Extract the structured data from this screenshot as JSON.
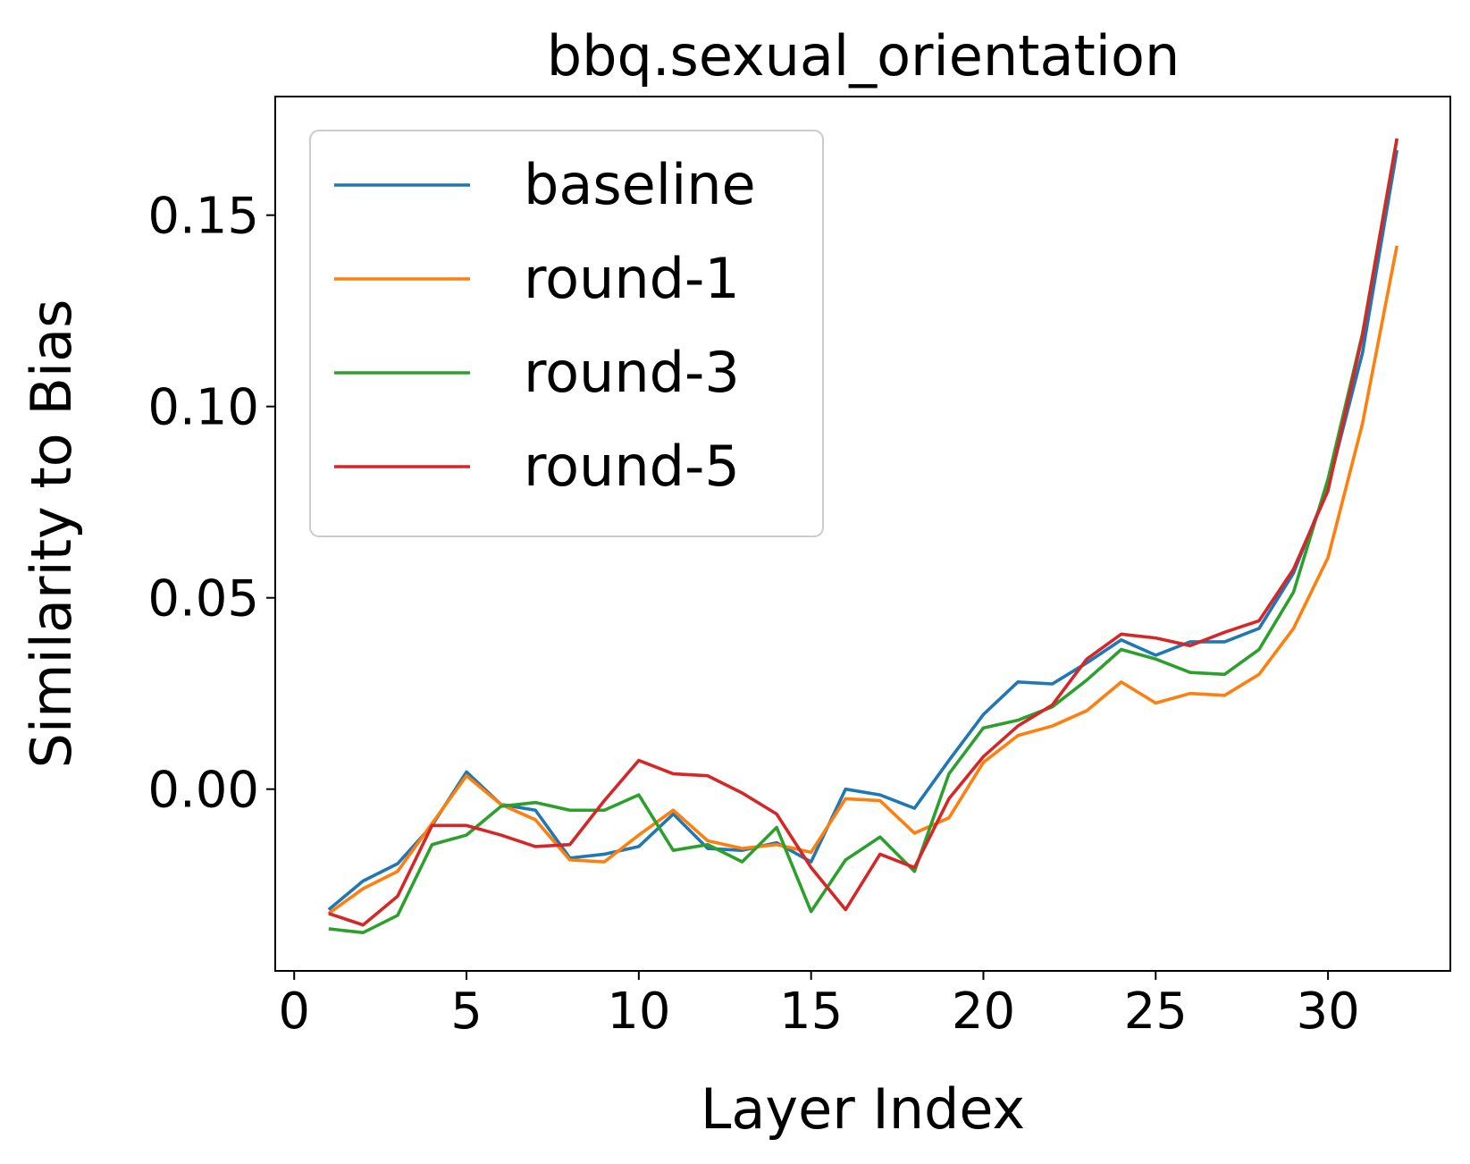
{
  "chart_data": {
    "type": "line",
    "title": "bbq.sexual_orientation",
    "xlabel": "Layer Index",
    "ylabel": "Similarity to Bias",
    "xlim": [
      -0.55,
      33.55
    ],
    "ylim": [
      -0.0475,
      0.181
    ],
    "xticks": [
      0,
      5,
      10,
      15,
      20,
      25,
      30
    ],
    "xtick_labels": [
      "0",
      "5",
      "10",
      "15",
      "20",
      "25",
      "30"
    ],
    "yticks": [
      0.0,
      0.05,
      0.1,
      0.15
    ],
    "ytick_labels": [
      "0.00",
      "0.05",
      "0.10",
      "0.15"
    ],
    "grid": false,
    "legend_position": "upper-left",
    "x": [
      1,
      2,
      3,
      4,
      5,
      6,
      7,
      8,
      9,
      10,
      11,
      12,
      13,
      14,
      15,
      16,
      17,
      18,
      19,
      20,
      21,
      22,
      23,
      24,
      25,
      26,
      27,
      28,
      29,
      30,
      31,
      32
    ],
    "series": [
      {
        "name": "baseline",
        "color": "#1f77b4",
        "values": [
          -0.0315,
          -0.024,
          -0.0195,
          -0.0095,
          0.0045,
          -0.004,
          -0.0055,
          -0.018,
          -0.017,
          -0.015,
          -0.0065,
          -0.0155,
          -0.016,
          -0.014,
          -0.019,
          0.0,
          -0.0015,
          -0.005,
          0.0075,
          0.0195,
          0.028,
          0.0275,
          0.033,
          0.039,
          0.035,
          0.0385,
          0.0385,
          0.042,
          0.0565,
          0.079,
          0.114,
          0.167
        ]
      },
      {
        "name": "round-1",
        "color": "#ff7f0e",
        "values": [
          -0.0325,
          -0.026,
          -0.0215,
          -0.009,
          0.0035,
          -0.004,
          -0.008,
          -0.0185,
          -0.019,
          -0.012,
          -0.0055,
          -0.0135,
          -0.0155,
          -0.0145,
          -0.0165,
          -0.0025,
          -0.003,
          -0.0115,
          -0.0075,
          0.007,
          0.014,
          0.0165,
          0.0205,
          0.028,
          0.0225,
          0.025,
          0.0245,
          0.03,
          0.042,
          0.0605,
          0.0955,
          0.142
        ]
      },
      {
        "name": "round-3",
        "color": "#2ca02c",
        "values": [
          -0.0365,
          -0.0375,
          -0.033,
          -0.0145,
          -0.012,
          -0.0045,
          -0.0035,
          -0.0055,
          -0.0055,
          -0.0015,
          -0.016,
          -0.0145,
          -0.019,
          -0.01,
          -0.032,
          -0.0185,
          -0.0125,
          -0.0215,
          0.004,
          0.016,
          0.018,
          0.0215,
          0.0285,
          0.0365,
          0.034,
          0.0305,
          0.03,
          0.0365,
          0.0515,
          0.081,
          0.119,
          0.17
        ]
      },
      {
        "name": "round-5",
        "color": "#d62728",
        "values": [
          -0.0325,
          -0.0355,
          -0.028,
          -0.0095,
          -0.0095,
          -0.012,
          -0.015,
          -0.0145,
          -0.003,
          0.0075,
          0.004,
          0.0035,
          -0.001,
          -0.0065,
          -0.0205,
          -0.0315,
          -0.017,
          -0.0205,
          -0.0025,
          0.0085,
          0.0165,
          0.022,
          0.034,
          0.0405,
          0.0395,
          0.0375,
          0.041,
          0.044,
          0.0575,
          0.078,
          0.1185,
          0.17
        ]
      }
    ]
  }
}
